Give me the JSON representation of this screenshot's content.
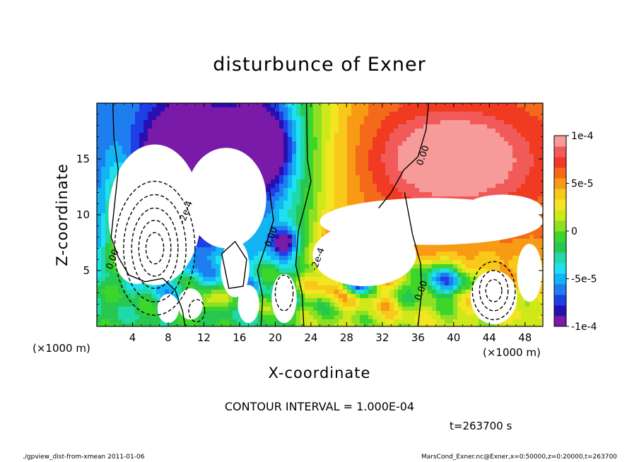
{
  "chart_data": {
    "type": "heatmap",
    "title": "disturbunce of Exner",
    "xlabel": "X-coordinate",
    "ylabel": "Z-coordinate",
    "x_unit_left": "(×1000 m)",
    "x_unit_right": "(×1000 m)",
    "x_ticks": [
      4,
      8,
      12,
      16,
      20,
      24,
      28,
      32,
      36,
      40,
      44,
      48
    ],
    "y_ticks": [
      5,
      10,
      15
    ],
    "xlim": [
      0,
      50
    ],
    "ylim": [
      0,
      20
    ],
    "colorbar": {
      "range": [
        -0.0001,
        0.0001
      ],
      "tick_values": [
        0.0001,
        5e-05,
        0,
        -5e-05,
        -0.0001
      ],
      "tick_labels": [
        "1e-4",
        "5e-5",
        "0",
        "-5e-5",
        "-1e-4"
      ],
      "colors": [
        "#7a1aa8",
        "#2a0fb0",
        "#1f3fe6",
        "#1e7ef0",
        "#14b3f4",
        "#1ee0ee",
        "#1fd9a8",
        "#28c850",
        "#3cd62a",
        "#8fe024",
        "#cfe81a",
        "#f2e622",
        "#f8c81a",
        "#f89a14",
        "#f56a1a",
        "#f03a22",
        "#f25a5a",
        "#f79a9a"
      ]
    },
    "contour_labels": [
      {
        "text": "0.00",
        "x": 36.6,
        "z": 15.3
      },
      {
        "text": "-2e-4",
        "x": 10.0,
        "z": 10.2
      },
      {
        "text": "0.00",
        "x": 19.6,
        "z": 8.0
      },
      {
        "text": "-2e-4",
        "x": 24.8,
        "z": 6.0
      },
      {
        "text": "0.00",
        "x": 1.8,
        "z": 6.0
      },
      {
        "text": "0.00",
        "x": 36.4,
        "z": 3.2
      }
    ],
    "contour_interval": "CONTOUR INTERVAL = 1.000E-04",
    "time_label": "t=263700 s"
  },
  "footer": {
    "left": "./gpview_dist-from-xmean  2011-01-06",
    "right": "MarsCond_Exner.nc@Exner,x=0:50000,z=0:20000,t=263700"
  }
}
